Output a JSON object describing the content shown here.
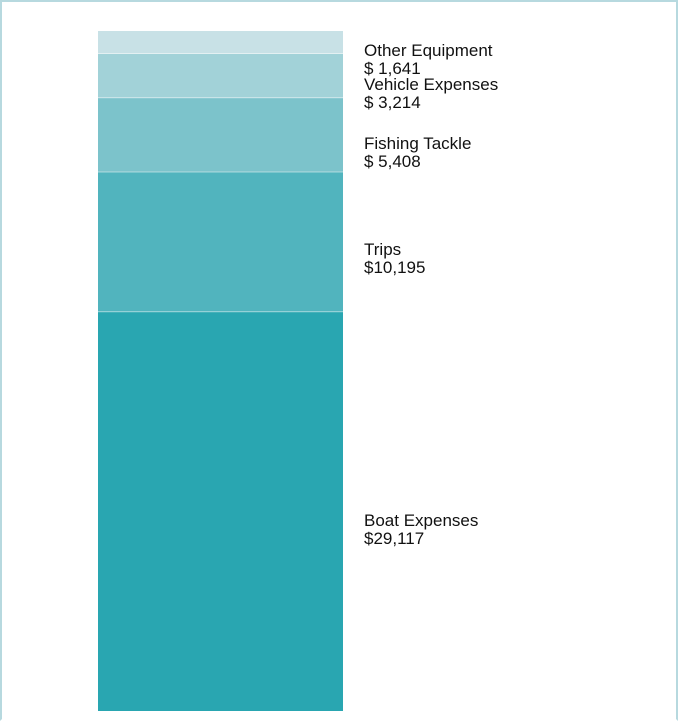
{
  "chart_data": {
    "type": "bar",
    "stacked": true,
    "series": [
      {
        "name": "Boat Expenses",
        "value": 29117,
        "value_label": "$29,117",
        "color": "#29a6b1"
      },
      {
        "name": "Trips",
        "value": 10195,
        "value_label": "$10,195",
        "color": "#51b4be"
      },
      {
        "name": "Fishing Tackle",
        "value": 5408,
        "value_label": "$ 5,408",
        "color": "#7cc3cb"
      },
      {
        "name": "Vehicle Expenses",
        "value": 3214,
        "value_label": "$ 3,214",
        "color": "#a2d2d8"
      },
      {
        "name": "Other Equipment",
        "value": 1641,
        "value_label": "$ 1,641",
        "color": "#c8e1e6"
      }
    ],
    "grid": false,
    "legend": "none",
    "axes": "none"
  },
  "colors": {
    "frame_border": "#b7d9df",
    "segment_divider": "#ffffff"
  }
}
